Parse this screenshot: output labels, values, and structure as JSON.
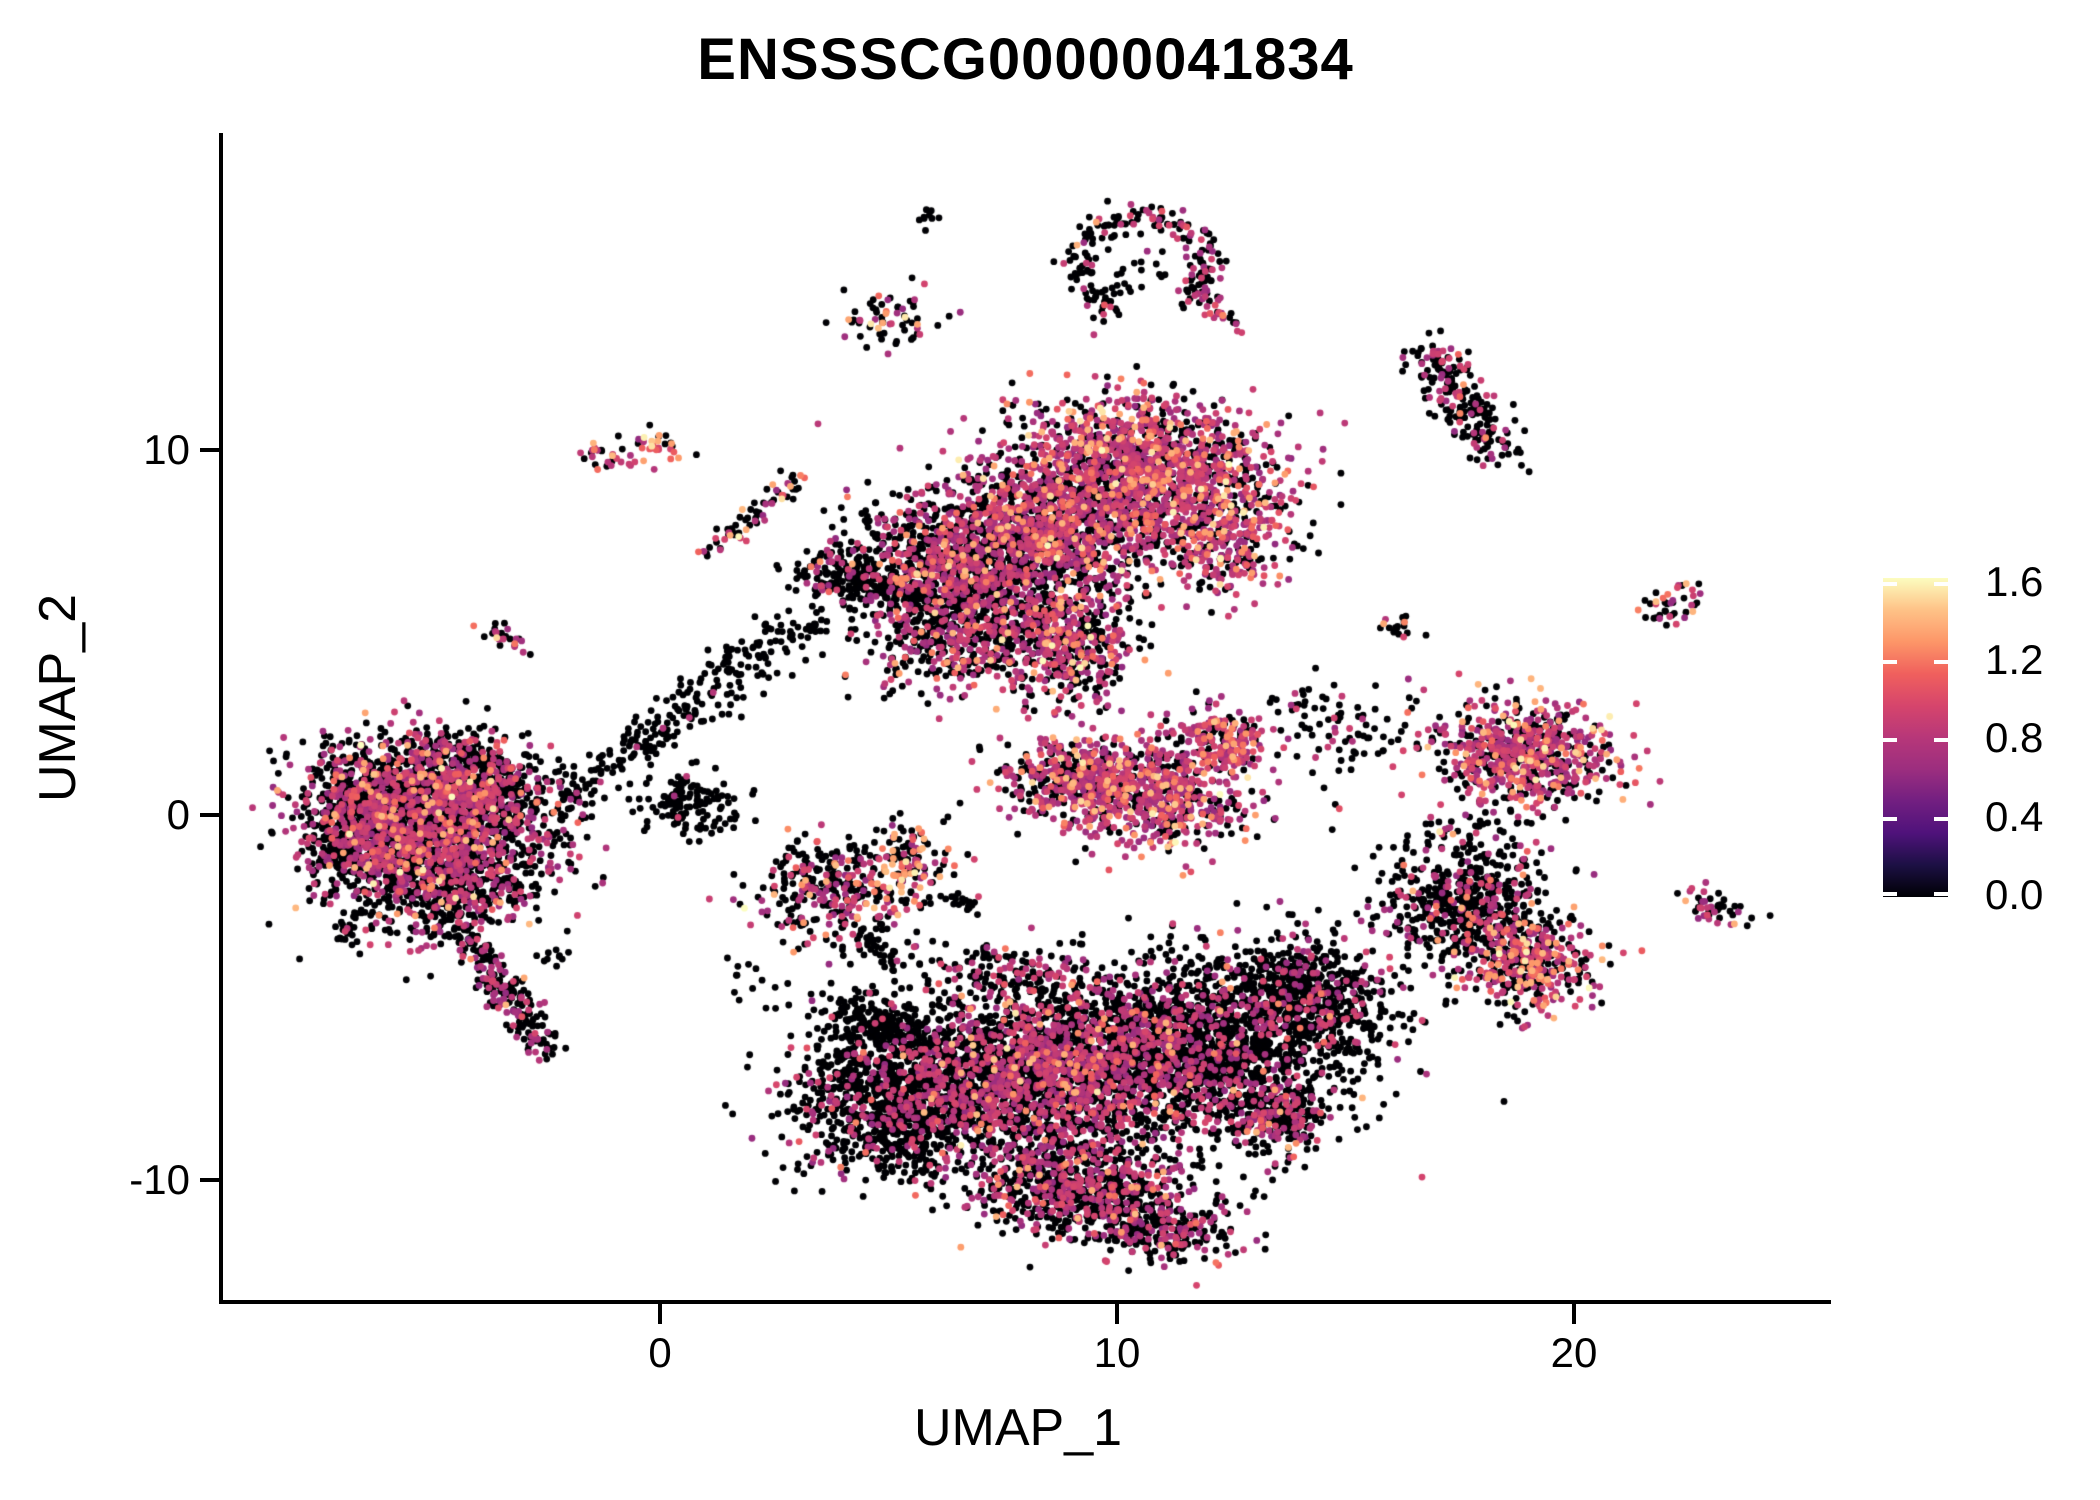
{
  "title": "ENSSSCG00000041834",
  "chart_data": {
    "type": "scatter",
    "subtype": "umap-feature-plot",
    "title": "ENSSSCG00000041834",
    "xlabel": "UMAP_1",
    "ylabel": "UMAP_2",
    "x_range": [
      -9.6,
      25.6
    ],
    "y_range": [
      -13.35,
      18.65
    ],
    "x_ticks": {
      "values": [
        0,
        10,
        20
      ],
      "labels": [
        "0",
        "10",
        "20"
      ]
    },
    "y_ticks": {
      "values": [
        10,
        0,
        -10
      ],
      "labels": [
        "10",
        "0",
        "-10"
      ]
    },
    "legend": {
      "tick_labels": [
        "1.6",
        "1.2",
        "0.8",
        "0.4",
        "0.0"
      ],
      "tick_values": [
        1.6,
        1.2,
        0.8,
        0.4,
        0.0
      ],
      "vmax": 1.65
    },
    "grid": false,
    "point_radius_px": 3.4,
    "seed": 42,
    "colormap": {
      "name": "magma",
      "stops": [
        [
          0.0,
          "#000004"
        ],
        [
          0.1,
          "#1c1044"
        ],
        [
          0.2,
          "#4f127b"
        ],
        [
          0.3,
          "#721f81"
        ],
        [
          0.4,
          "#9c2e7f"
        ],
        [
          0.5,
          "#b73779"
        ],
        [
          0.6,
          "#d6456c"
        ],
        [
          0.7,
          "#f0605d"
        ],
        [
          0.8,
          "#fd9668"
        ],
        [
          0.9,
          "#fec287"
        ],
        [
          1.0,
          "#fcfdbf"
        ]
      ]
    },
    "value_bins": {
      "zero": 0.0,
      "mid": [
        0.62,
        1.0
      ],
      "high": [
        1.05,
        1.47
      ],
      "top": [
        1.48,
        1.65
      ]
    },
    "mixes": {
      "dark": [
        0.97,
        0.03,
        0.0,
        0.0
      ],
      "darkSparse": [
        0.85,
        0.15,
        0.0,
        0.0
      ],
      "blackish": [
        0.84,
        0.14,
        0.02,
        0.0
      ],
      "bottomBlack": [
        0.82,
        0.165,
        0.015,
        0.0
      ],
      "sparseBlack": [
        0.76,
        0.215,
        0.025,
        0.0
      ],
      "ringMix": [
        0.72,
        0.25,
        0.03,
        0.0
      ],
      "tailMix": [
        0.7,
        0.28,
        0.02,
        0.0
      ],
      "mixed": [
        0.62,
        0.32,
        0.055,
        0.005
      ],
      "mixed2": [
        0.58,
        0.36,
        0.055,
        0.005
      ],
      "halfBottom": [
        0.62,
        0.34,
        0.04,
        0.0
      ],
      "halfPurple": [
        0.48,
        0.42,
        0.09,
        0.01
      ],
      "purpleHeavy": [
        0.33,
        0.53,
        0.125,
        0.015
      ],
      "purpleChain": [
        0.35,
        0.55,
        0.1,
        0.0
      ],
      "halfHot": [
        0.42,
        0.4,
        0.16,
        0.02
      ],
      "islandHot": [
        0.45,
        0.35,
        0.18,
        0.02
      ],
      "isletHot2": [
        0.62,
        0.22,
        0.14,
        0.02
      ],
      "isletMix": [
        0.62,
        0.26,
        0.12,
        0.0
      ],
      "chainHot": [
        0.6,
        0.22,
        0.16,
        0.02
      ],
      "orangeHot": [
        0.38,
        0.27,
        0.29,
        0.06
      ]
    },
    "clusters": [
      {
        "type": "blob",
        "c": [
          -5.9,
          0.3
        ],
        "s": [
          1.05,
          0.8
        ],
        "rot": -15,
        "n": 1150,
        "mix": "mixed"
      },
      {
        "type": "blob",
        "c": [
          -4.1,
          0.8
        ],
        "s": [
          0.95,
          0.65
        ],
        "rot": -30,
        "n": 850,
        "mix": "mixed"
      },
      {
        "type": "blob",
        "c": [
          -4.7,
          -1.5
        ],
        "s": [
          1.15,
          0.85
        ],
        "rot": 10,
        "n": 950,
        "mix": "mixed"
      },
      {
        "type": "blob",
        "c": [
          -6.4,
          -0.9
        ],
        "s": [
          0.7,
          0.6
        ],
        "rot": 0,
        "n": 420,
        "mix": "mixed"
      },
      {
        "type": "chain",
        "a": [
          -4.5,
          -2.8
        ],
        "b": [
          -2.4,
          -6.6
        ],
        "s": 0.22,
        "n": 230,
        "mix": "tailMix"
      },
      {
        "type": "blob",
        "c": [
          -6.8,
          -3.2
        ],
        "s": [
          0.16,
          0.12
        ],
        "rot": 0,
        "n": 12,
        "mix": "blackish"
      },
      {
        "type": "blob",
        "c": [
          -3.3,
          4.8
        ],
        "s": [
          0.32,
          0.16
        ],
        "rot": -40,
        "n": 24,
        "mix": "islandHot"
      },
      {
        "type": "blob",
        "c": [
          -1.15,
          9.8
        ],
        "s": [
          0.38,
          0.22
        ],
        "rot": -20,
        "n": 30,
        "mix": "islandHot"
      },
      {
        "type": "blob",
        "c": [
          -0.05,
          10.25
        ],
        "s": [
          0.38,
          0.2
        ],
        "rot": -15,
        "n": 28,
        "mix": "orangeHot"
      },
      {
        "type": "chain",
        "a": [
          0.85,
          7.0
        ],
        "b": [
          3.0,
          9.25
        ],
        "s": 0.17,
        "n": 65,
        "mix": "chainHot"
      },
      {
        "type": "blob",
        "c": [
          5.9,
          16.4
        ],
        "s": [
          0.14,
          0.16
        ],
        "rot": 0,
        "n": 9,
        "mix": "dark"
      },
      {
        "type": "ring",
        "c": [
          10.55,
          15.1
        ],
        "r": [
          1.45,
          1.35
        ],
        "s": 0.2,
        "gap": [
          255,
          305
        ],
        "n": 200,
        "mix": "ringMix"
      },
      {
        "type": "blob",
        "c": [
          10.3,
          14.9
        ],
        "s": [
          0.45,
          0.4
        ],
        "rot": 0,
        "n": 18,
        "mix": "dark"
      },
      {
        "type": "chain",
        "a": [
          11.9,
          14.3
        ],
        "b": [
          12.7,
          13.2
        ],
        "s": 0.15,
        "n": 26,
        "mix": "purpleChain"
      },
      {
        "type": "blob",
        "c": [
          5.1,
          13.6
        ],
        "s": [
          0.5,
          0.42
        ],
        "rot": 0,
        "n": 65,
        "mix": "isletHot2"
      },
      {
        "type": "blob",
        "c": [
          10.8,
          9.4
        ],
        "s": [
          1.45,
          0.95
        ],
        "rot": -18,
        "n": 1600,
        "mix": "purpleHeavy"
      },
      {
        "type": "blob",
        "c": [
          6.6,
          6.6
        ],
        "s": [
          1.25,
          0.95
        ],
        "rot": -30,
        "n": 1250,
        "mix": "mixed"
      },
      {
        "type": "blob",
        "c": [
          8.6,
          7.9
        ],
        "s": [
          1.15,
          0.85
        ],
        "rot": -25,
        "n": 1050,
        "mix": "halfPurple"
      },
      {
        "type": "blob",
        "c": [
          8.9,
          4.7
        ],
        "s": [
          0.75,
          0.85
        ],
        "rot": 0,
        "n": 480,
        "mix": "halfPurple"
      },
      {
        "type": "blob",
        "c": [
          6.3,
          4.6
        ],
        "s": [
          0.95,
          0.7
        ],
        "rot": 0,
        "n": 260,
        "mix": "mixed"
      },
      {
        "type": "blob",
        "c": [
          4.3,
          6.5
        ],
        "s": [
          0.75,
          0.33
        ],
        "rot": -12,
        "n": 200,
        "mix": "blackish"
      },
      {
        "type": "blob",
        "c": [
          12.4,
          7.2
        ],
        "s": [
          0.5,
          0.65
        ],
        "rot": 0,
        "n": 180,
        "mix": "purpleHeavy"
      },
      {
        "type": "blob",
        "c": [
          10.4,
          0.7
        ],
        "s": [
          1.25,
          0.7
        ],
        "rot": -12,
        "n": 850,
        "mix": "purpleHeavy"
      },
      {
        "type": "blob",
        "c": [
          12.3,
          2.0
        ],
        "s": [
          0.55,
          0.4
        ],
        "rot": -30,
        "n": 220,
        "mix": "purpleHeavy"
      },
      {
        "type": "blob",
        "c": [
          8.9,
          1.0
        ],
        "s": [
          0.6,
          0.5
        ],
        "rot": 0,
        "n": 200,
        "mix": "halfPurple"
      },
      {
        "type": "blob",
        "c": [
          3.7,
          -2.0
        ],
        "s": [
          0.8,
          0.7
        ],
        "rot": 0,
        "n": 290,
        "mix": "mixed"
      },
      {
        "type": "blob",
        "c": [
          5.35,
          -1.4
        ],
        "s": [
          0.45,
          0.6
        ],
        "rot": 0,
        "n": 160,
        "mix": "orangeHot"
      },
      {
        "type": "chain",
        "a": [
          6.2,
          -2.2
        ],
        "b": [
          7.0,
          -2.45
        ],
        "s": 0.1,
        "n": 20,
        "mix": "dark"
      },
      {
        "type": "blob",
        "c": [
          7.1,
          -3.9
        ],
        "s": [
          0.12,
          0.3
        ],
        "rot": 0,
        "n": 16,
        "mix": "blackish"
      },
      {
        "type": "blob",
        "c": [
          5.3,
          -7.6
        ],
        "s": [
          1.15,
          1.05
        ],
        "rot": 10,
        "n": 1350,
        "mix": "bottomBlack"
      },
      {
        "type": "blob",
        "c": [
          8.4,
          -7.2
        ],
        "s": [
          1.35,
          1.15
        ],
        "rot": -10,
        "n": 1750,
        "mix": "mixed2"
      },
      {
        "type": "blob",
        "c": [
          11.6,
          -6.4
        ],
        "s": [
          1.5,
          1.15
        ],
        "rot": -15,
        "n": 1850,
        "mix": "sparseBlack"
      },
      {
        "type": "blob",
        "c": [
          14.2,
          -5.0
        ],
        "s": [
          1.0,
          0.75
        ],
        "rot": -30,
        "n": 650,
        "mix": "bottomBlack"
      },
      {
        "type": "blob",
        "c": [
          9.4,
          -10.3
        ],
        "s": [
          1.25,
          0.65
        ],
        "rot": -8,
        "n": 800,
        "mix": "halfBottom"
      },
      {
        "type": "blob",
        "c": [
          4.7,
          -5.7
        ],
        "s": [
          0.65,
          0.3
        ],
        "rot": -20,
        "n": 180,
        "mix": "dark"
      },
      {
        "type": "blob",
        "c": [
          7.6,
          -4.5
        ],
        "s": [
          0.95,
          0.45
        ],
        "rot": 0,
        "n": 140,
        "mix": "sparseBlack"
      },
      {
        "type": "blob",
        "c": [
          13.5,
          -8.3
        ],
        "s": [
          0.6,
          0.45
        ],
        "rot": 0,
        "n": 240,
        "mix": "halfBottom"
      },
      {
        "type": "blob",
        "c": [
          11.0,
          -11.5
        ],
        "s": [
          0.8,
          0.4
        ],
        "rot": -5,
        "n": 180,
        "mix": "halfBottom"
      },
      {
        "type": "blob",
        "c": [
          18.9,
          1.7
        ],
        "s": [
          1.0,
          0.7
        ],
        "rot": -8,
        "n": 720,
        "mix": "purpleHeavy"
      },
      {
        "type": "blob",
        "c": [
          17.6,
          -2.5
        ],
        "s": [
          0.85,
          0.75
        ],
        "rot": 0,
        "n": 520,
        "mix": "sparseBlack"
      },
      {
        "type": "blob",
        "c": [
          19.0,
          -4.0
        ],
        "s": [
          0.7,
          0.65
        ],
        "rot": 0,
        "n": 430,
        "mix": "halfHot"
      },
      {
        "type": "chain",
        "a": [
          16.8,
          12.7
        ],
        "b": [
          18.35,
          9.9
        ],
        "s": 0.3,
        "n": 210,
        "mix": "ringMix"
      },
      {
        "type": "blob",
        "c": [
          16.2,
          5.2
        ],
        "s": [
          0.35,
          0.2
        ],
        "rot": 0,
        "n": 18,
        "mix": "isletHot2"
      },
      {
        "type": "blob",
        "c": [
          23.0,
          -2.5
        ],
        "s": [
          0.45,
          0.2
        ],
        "rot": -30,
        "n": 45,
        "mix": "isletMix"
      },
      {
        "type": "blob",
        "c": [
          15.2,
          2.3
        ],
        "s": [
          0.8,
          0.55
        ],
        "rot": 0,
        "n": 70,
        "mix": "darkSparse"
      },
      {
        "type": "blob",
        "c": [
          17.8,
          -0.6
        ],
        "s": [
          0.6,
          0.45
        ],
        "rot": 0,
        "n": 70,
        "mix": "sparseBlack"
      },
      {
        "type": "blob",
        "c": [
          22.1,
          5.8
        ],
        "s": [
          0.4,
          0.28
        ],
        "rot": 0,
        "n": 40,
        "mix": "islandHot"
      },
      {
        "type": "chain",
        "a": [
          -2.2,
          0.3
        ],
        "b": [
          1.0,
          3.4
        ],
        "s": 0.35,
        "n": 150,
        "mix": "dark"
      },
      {
        "type": "chain",
        "a": [
          1.0,
          3.4
        ],
        "b": [
          3.6,
          5.4
        ],
        "s": 0.4,
        "n": 120,
        "mix": "dark"
      },
      {
        "type": "blob",
        "c": [
          0.6,
          0.3
        ],
        "s": [
          0.55,
          0.45
        ],
        "rot": 0,
        "n": 130,
        "mix": "dark"
      },
      {
        "type": "chain",
        "a": [
          4.2,
          -3.1
        ],
        "b": [
          5.6,
          -4.4
        ],
        "s": 0.25,
        "n": 50,
        "mix": "dark"
      },
      {
        "type": "blob",
        "c": [
          2.0,
          -4.5
        ],
        "s": [
          0.3,
          0.25
        ],
        "rot": 0,
        "n": 12,
        "mix": "dark"
      },
      {
        "type": "blob",
        "c": [
          -2.5,
          -4.0
        ],
        "s": [
          0.25,
          0.2
        ],
        "rot": 0,
        "n": 10,
        "mix": "dark"
      },
      {
        "type": "blob",
        "c": [
          13.9,
          3.1
        ],
        "s": [
          0.45,
          0.35
        ],
        "rot": 0,
        "n": 20,
        "mix": "darkSparse"
      }
    ]
  }
}
